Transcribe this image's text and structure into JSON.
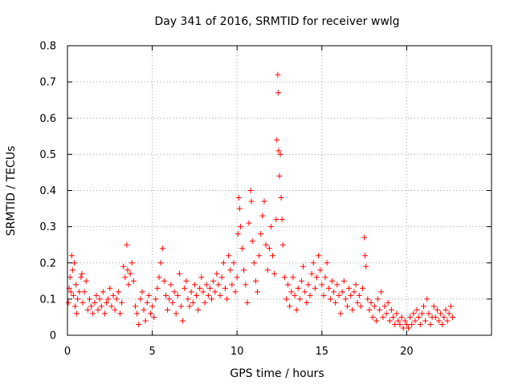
{
  "chart_data": {
    "type": "scatter",
    "title": "Day 341 of 2016, SRMTID for receiver wwlg",
    "xlabel": "GPS time / hours",
    "ylabel": "SRMTID / TECUs",
    "xlim": [
      0,
      25
    ],
    "ylim": [
      0,
      0.8
    ],
    "xticks": [
      0,
      5,
      10,
      15,
      20
    ],
    "xtick_labels": [
      "0",
      "5",
      "10",
      "15",
      "20"
    ],
    "yticks": [
      0,
      0.1,
      0.2,
      0.3,
      0.4,
      0.5,
      0.6,
      0.7,
      0.8
    ],
    "ytick_labels": [
      "0",
      "0.1",
      "0.2",
      "0.3",
      "0.4",
      "0.5",
      "0.6",
      "0.7",
      "0.8"
    ],
    "grid": true,
    "marker": "+",
    "color": "#ff0000",
    "series": [
      {
        "name": "SRMTID",
        "points": [
          [
            0.05,
            0.09
          ],
          [
            0.1,
            0.13
          ],
          [
            0.15,
            0.16
          ],
          [
            0.2,
            0.12
          ],
          [
            0.25,
            0.22
          ],
          [
            0.3,
            0.18
          ],
          [
            0.35,
            0.11
          ],
          [
            0.4,
            0.2
          ],
          [
            0.45,
            0.08
          ],
          [
            0.5,
            0.14
          ],
          [
            0.55,
            0.06
          ],
          [
            0.6,
            0.1
          ],
          [
            0.7,
            0.12
          ],
          [
            0.8,
            0.16
          ],
          [
            0.85,
            0.17
          ],
          [
            0.9,
            0.09
          ],
          [
            1.0,
            0.12
          ],
          [
            1.1,
            0.15
          ],
          [
            1.2,
            0.07
          ],
          [
            1.3,
            0.1
          ],
          [
            1.4,
            0.08
          ],
          [
            1.5,
            0.06
          ],
          [
            1.6,
            0.09
          ],
          [
            1.7,
            0.11
          ],
          [
            1.8,
            0.07
          ],
          [
            1.9,
            0.1
          ],
          [
            2.0,
            0.08
          ],
          [
            2.1,
            0.12
          ],
          [
            2.2,
            0.06
          ],
          [
            2.3,
            0.09
          ],
          [
            2.4,
            0.1
          ],
          [
            2.5,
            0.13
          ],
          [
            2.6,
            0.08
          ],
          [
            2.7,
            0.11
          ],
          [
            2.8,
            0.07
          ],
          [
            2.9,
            0.1
          ],
          [
            3.0,
            0.12
          ],
          [
            3.1,
            0.06
          ],
          [
            3.2,
            0.09
          ],
          [
            3.3,
            0.19
          ],
          [
            3.4,
            0.16
          ],
          [
            3.5,
            0.25
          ],
          [
            3.55,
            0.18
          ],
          [
            3.6,
            0.14
          ],
          [
            3.7,
            0.17
          ],
          [
            3.8,
            0.2
          ],
          [
            3.9,
            0.15
          ],
          [
            4.0,
            0.08
          ],
          [
            4.1,
            0.06
          ],
          [
            4.2,
            0.03
          ],
          [
            4.3,
            0.1
          ],
          [
            4.4,
            0.12
          ],
          [
            4.5,
            0.07
          ],
          [
            4.6,
            0.04
          ],
          [
            4.7,
            0.09
          ],
          [
            4.8,
            0.11
          ],
          [
            4.9,
            0.06
          ],
          [
            5.0,
            0.08
          ],
          [
            5.1,
            0.05
          ],
          [
            5.2,
            0.1
          ],
          [
            5.3,
            0.13
          ],
          [
            5.4,
            0.16
          ],
          [
            5.5,
            0.2
          ],
          [
            5.6,
            0.24
          ],
          [
            5.7,
            0.15
          ],
          [
            5.8,
            0.11
          ],
          [
            5.9,
            0.07
          ],
          [
            6.0,
            0.1
          ],
          [
            6.1,
            0.14
          ],
          [
            6.2,
            0.09
          ],
          [
            6.3,
            0.12
          ],
          [
            6.4,
            0.06
          ],
          [
            6.5,
            0.11
          ],
          [
            6.6,
            0.17
          ],
          [
            6.7,
            0.08
          ],
          [
            6.8,
            0.04
          ],
          [
            6.9,
            0.13
          ],
          [
            7.0,
            0.15
          ],
          [
            7.1,
            0.1
          ],
          [
            7.2,
            0.08
          ],
          [
            7.3,
            0.12
          ],
          [
            7.4,
            0.09
          ],
          [
            7.5,
            0.14
          ],
          [
            7.6,
            0.11
          ],
          [
            7.7,
            0.07
          ],
          [
            7.8,
            0.13
          ],
          [
            7.9,
            0.16
          ],
          [
            8.0,
            0.12
          ],
          [
            8.1,
            0.09
          ],
          [
            8.2,
            0.14
          ],
          [
            8.3,
            0.11
          ],
          [
            8.4,
            0.13
          ],
          [
            8.5,
            0.1
          ],
          [
            8.6,
            0.15
          ],
          [
            8.7,
            0.12
          ],
          [
            8.8,
            0.17
          ],
          [
            8.9,
            0.14
          ],
          [
            9.0,
            0.11
          ],
          [
            9.1,
            0.16
          ],
          [
            9.2,
            0.2
          ],
          [
            9.3,
            0.13
          ],
          [
            9.4,
            0.1
          ],
          [
            9.5,
            0.22
          ],
          [
            9.6,
            0.18
          ],
          [
            9.7,
            0.14
          ],
          [
            9.8,
            0.2
          ],
          [
            9.9,
            0.12
          ],
          [
            10.0,
            0.16
          ],
          [
            10.05,
            0.28
          ],
          [
            10.1,
            0.38
          ],
          [
            10.15,
            0.35
          ],
          [
            10.2,
            0.3
          ],
          [
            10.3,
            0.24
          ],
          [
            10.4,
            0.18
          ],
          [
            10.5,
            0.14
          ],
          [
            10.6,
            0.09
          ],
          [
            10.7,
            0.31
          ],
          [
            10.8,
            0.4
          ],
          [
            10.85,
            0.37
          ],
          [
            10.9,
            0.26
          ],
          [
            11.0,
            0.2
          ],
          [
            11.1,
            0.15
          ],
          [
            11.2,
            0.12
          ],
          [
            11.3,
            0.22
          ],
          [
            11.4,
            0.28
          ],
          [
            11.5,
            0.33
          ],
          [
            11.6,
            0.37
          ],
          [
            11.7,
            0.25
          ],
          [
            11.8,
            0.18
          ],
          [
            11.9,
            0.24
          ],
          [
            12.0,
            0.3
          ],
          [
            12.1,
            0.22
          ],
          [
            12.2,
            0.17
          ],
          [
            12.3,
            0.32
          ],
          [
            12.35,
            0.54
          ],
          [
            12.4,
            0.72
          ],
          [
            12.42,
            0.67
          ],
          [
            12.45,
            0.51
          ],
          [
            12.5,
            0.44
          ],
          [
            12.55,
            0.5
          ],
          [
            12.6,
            0.38
          ],
          [
            12.65,
            0.32
          ],
          [
            12.7,
            0.25
          ],
          [
            12.8,
            0.16
          ],
          [
            12.9,
            0.1
          ],
          [
            13.0,
            0.14
          ],
          [
            13.1,
            0.08
          ],
          [
            13.2,
            0.12
          ],
          [
            13.3,
            0.16
          ],
          [
            13.4,
            0.11
          ],
          [
            13.5,
            0.07
          ],
          [
            13.6,
            0.13
          ],
          [
            13.7,
            0.1
          ],
          [
            13.8,
            0.15
          ],
          [
            13.9,
            0.19
          ],
          [
            14.0,
            0.12
          ],
          [
            14.1,
            0.09
          ],
          [
            14.2,
            0.14
          ],
          [
            14.3,
            0.11
          ],
          [
            14.4,
            0.17
          ],
          [
            14.5,
            0.2
          ],
          [
            14.6,
            0.13
          ],
          [
            14.7,
            0.16
          ],
          [
            14.8,
            0.22
          ],
          [
            14.9,
            0.18
          ],
          [
            15.0,
            0.14
          ],
          [
            15.1,
            0.11
          ],
          [
            15.2,
            0.16
          ],
          [
            15.3,
            0.2
          ],
          [
            15.4,
            0.13
          ],
          [
            15.5,
            0.1
          ],
          [
            15.6,
            0.15
          ],
          [
            15.7,
            0.12
          ],
          [
            15.8,
            0.09
          ],
          [
            15.9,
            0.14
          ],
          [
            16.0,
            0.11
          ],
          [
            16.1,
            0.06
          ],
          [
            16.2,
            0.12
          ],
          [
            16.3,
            0.15
          ],
          [
            16.4,
            0.1
          ],
          [
            16.5,
            0.08
          ],
          [
            16.6,
            0.13
          ],
          [
            16.7,
            0.11
          ],
          [
            16.8,
            0.07
          ],
          [
            16.9,
            0.12
          ],
          [
            17.0,
            0.14
          ],
          [
            17.1,
            0.09
          ],
          [
            17.2,
            0.11
          ],
          [
            17.3,
            0.08
          ],
          [
            17.4,
            0.13
          ],
          [
            17.5,
            0.27
          ],
          [
            17.55,
            0.22
          ],
          [
            17.6,
            0.19
          ],
          [
            17.7,
            0.1
          ],
          [
            17.8,
            0.07
          ],
          [
            17.9,
            0.09
          ],
          [
            18.0,
            0.05
          ],
          [
            18.1,
            0.08
          ],
          [
            18.2,
            0.04
          ],
          [
            18.3,
            0.1
          ],
          [
            18.4,
            0.07
          ],
          [
            18.5,
            0.12
          ],
          [
            18.6,
            0.05
          ],
          [
            18.7,
            0.08
          ],
          [
            18.8,
            0.06
          ],
          [
            18.9,
            0.09
          ],
          [
            19.0,
            0.04
          ],
          [
            19.1,
            0.07
          ],
          [
            19.2,
            0.05
          ],
          [
            19.3,
            0.03
          ],
          [
            19.4,
            0.06
          ],
          [
            19.5,
            0.04
          ],
          [
            19.6,
            0.03
          ],
          [
            19.7,
            0.05
          ],
          [
            19.8,
            0.02
          ],
          [
            19.9,
            0.04
          ],
          [
            20.0,
            0.03
          ],
          [
            20.1,
            0.02
          ],
          [
            20.2,
            0.05
          ],
          [
            20.3,
            0.03
          ],
          [
            20.4,
            0.06
          ],
          [
            20.5,
            0.04
          ],
          [
            20.6,
            0.07
          ],
          [
            20.7,
            0.05
          ],
          [
            20.8,
            0.03
          ],
          [
            20.9,
            0.06
          ],
          [
            21.0,
            0.08
          ],
          [
            21.1,
            0.04
          ],
          [
            21.2,
            0.1
          ],
          [
            21.3,
            0.06
          ],
          [
            21.4,
            0.03
          ],
          [
            21.5,
            0.05
          ],
          [
            21.6,
            0.08
          ],
          [
            21.7,
            0.05
          ],
          [
            21.8,
            0.07
          ],
          [
            21.9,
            0.04
          ],
          [
            22.0,
            0.06
          ],
          [
            22.1,
            0.03
          ],
          [
            22.2,
            0.05
          ],
          [
            22.3,
            0.07
          ],
          [
            22.4,
            0.04
          ],
          [
            22.5,
            0.06
          ],
          [
            22.6,
            0.08
          ],
          [
            22.7,
            0.05
          ]
        ]
      }
    ]
  }
}
